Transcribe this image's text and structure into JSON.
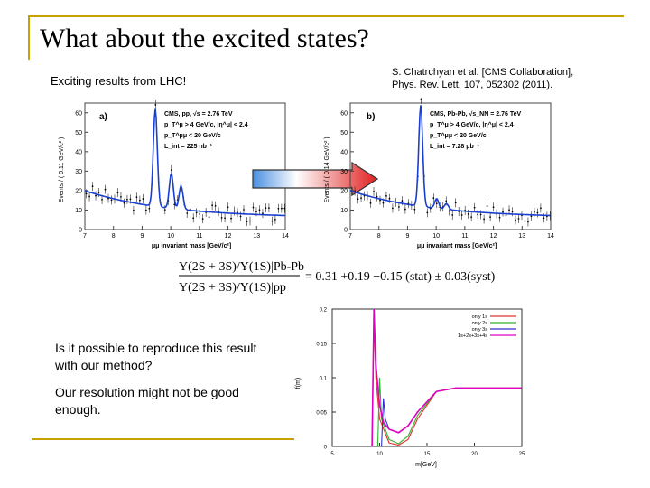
{
  "slide": {
    "title": "What about the excited states?",
    "subtitle": "Exciting results from LHC!",
    "citation_line1": "S. Chatrchyan et al. [CMS Collaboration],",
    "citation_line2": "Phys. Rev. Lett. 107, 052302 (2011).",
    "question": "Is it possible to reproduce this result with our method?",
    "note": "Our resolution might not be good enough.",
    "accent_color": "#c8a000"
  },
  "panel_a": {
    "label": "a)",
    "legend": [
      "CMS, pp, √s = 2.76 TeV",
      "p_T^μ > 4 GeV/c, |η^μ| < 2.4",
      "p_T^μμ < 20 GeV/c",
      "L_int = 225 nb⁻¹"
    ],
    "xlabel": "μμ invariant mass [GeV/c²]",
    "ylabel": "Events / ( 0.11 GeV/c² )",
    "xticks": [
      "7",
      "8",
      "9",
      "10",
      "11",
      "12",
      "13",
      "14"
    ],
    "yticks": [
      "0",
      "10",
      "20",
      "30",
      "40",
      "50",
      "60"
    ]
  },
  "panel_b": {
    "label": "b)",
    "legend": [
      "CMS, Pb-Pb, √s_NN = 2.76 TeV",
      "p_T^μ > 4 GeV/c, |η^μ| < 2.4",
      "p_T^μμ < 20 GeV/c",
      "L_int = 7.28 μb⁻¹"
    ],
    "xlabel": "μμ invariant mass [GeV/c²]",
    "ylabel": "Events / ( 0.14 GeV/c² )",
    "xticks": [
      "7",
      "8",
      "9",
      "10",
      "11",
      "12",
      "13",
      "14"
    ],
    "yticks": [
      "0",
      "10",
      "20",
      "30",
      "40",
      "50",
      "60"
    ]
  },
  "formula": {
    "numerator": "Y(2S + 3S)/Y(1S)|Pb-Pb",
    "denominator": "Y(2S + 3S)/Y(1S)|pp",
    "result": "= 0.31 +0.19 −0.15 (stat) ± 0.03(syst)"
  },
  "sim_plot": {
    "xlabel": "m[GeV]",
    "ylabel": "f(m)",
    "xticks": [
      "5",
      "10",
      "15",
      "20",
      "25"
    ],
    "yticks": [
      "0",
      "0.05",
      "0.1",
      "0.15",
      "0.2"
    ],
    "legend": [
      "only 1s",
      "only 2s",
      "only 3s",
      "1s+2s+3s+4s"
    ],
    "colors": [
      "#e03030",
      "#30b030",
      "#3030d0",
      "#e000c0"
    ]
  },
  "chart_data": [
    {
      "type": "line",
      "title": "",
      "xlabel": "m[GeV]",
      "ylabel": "f(m)",
      "xlim": [
        5,
        25
      ],
      "ylim": [
        0,
        0.2
      ],
      "series": [
        {
          "name": "only 1s",
          "x": [
            9.2,
            9.4,
            9.6,
            10,
            11,
            12,
            13,
            14,
            16,
            18,
            25
          ],
          "y": [
            0,
            0.19,
            0.1,
            0.04,
            0.005,
            0.002,
            0.01,
            0.04,
            0.08,
            0.085,
            0.085
          ]
        },
        {
          "name": "only 2s",
          "x": [
            9.8,
            10,
            10.2,
            11,
            12,
            13,
            14,
            16,
            18,
            25
          ],
          "y": [
            0,
            0.1,
            0.04,
            0.01,
            0.004,
            0.015,
            0.045,
            0.08,
            0.085,
            0.085
          ]
        },
        {
          "name": "only 3s",
          "x": [
            10.2,
            10.4,
            10.6,
            11,
            12,
            13,
            14,
            16,
            18,
            25
          ],
          "y": [
            0,
            0.07,
            0.04,
            0.025,
            0.02,
            0.03,
            0.05,
            0.08,
            0.085,
            0.085
          ]
        },
        {
          "name": "1s+2s+3s+4s",
          "x": [
            9.2,
            9.4,
            9.6,
            10,
            10.4,
            11,
            12,
            13,
            14,
            16,
            18,
            25
          ],
          "y": [
            0,
            0.2,
            0.12,
            0.06,
            0.035,
            0.025,
            0.02,
            0.03,
            0.05,
            0.08,
            0.085,
            0.085
          ]
        }
      ]
    }
  ]
}
